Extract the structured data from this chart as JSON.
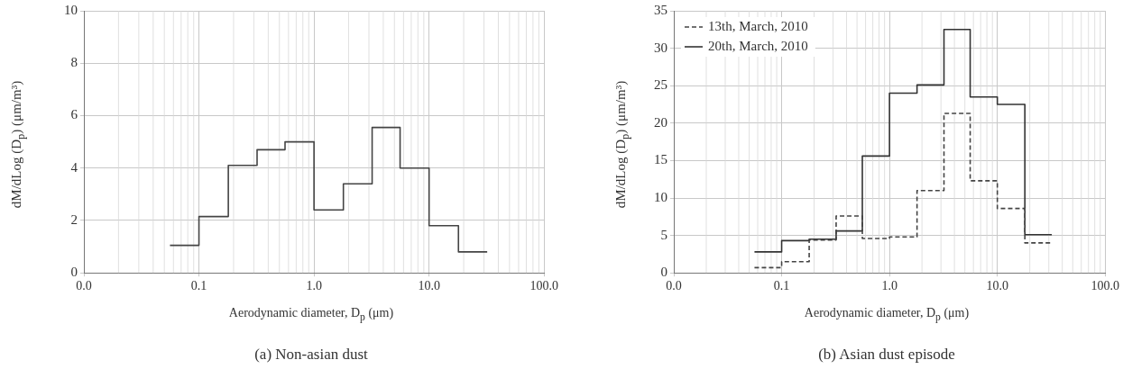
{
  "chart_data": [
    {
      "type": "histogram",
      "title": "(a) Non-asian dust",
      "xlabel": "Aerodynamic diameter, D$_{p}$ (μm)",
      "ylabel": "dM/dLog (D$_{p}$) (μm/m³)",
      "log": "x",
      "grid": true,
      "legend": false,
      "line_style": "solid",
      "color": "#444444",
      "bins": [
        0.056,
        0.1,
        0.18,
        0.32,
        0.56,
        1.0,
        1.8,
        3.2,
        5.6,
        10,
        18,
        32
      ],
      "values": [
        1.05,
        2.15,
        4.1,
        4.7,
        5.0,
        2.4,
        3.4,
        5.55,
        4.0,
        1.8,
        0.8
      ],
      "xlim": [
        0.01,
        100
      ],
      "xticks": [
        {
          "value": 0.01,
          "label": "0.0"
        },
        {
          "value": 0.1,
          "label": "0.1"
        },
        {
          "value": 1,
          "label": "1.0"
        },
        {
          "value": 10,
          "label": "10.0"
        },
        {
          "value": 100,
          "label": "100.0"
        }
      ],
      "ylim": [
        0,
        10
      ],
      "yticks": [
        0,
        2,
        4,
        6,
        8,
        10
      ]
    },
    {
      "type": "histogram",
      "title": "(b) Asian dust episode",
      "xlabel": "Aerodynamic diameter, D$_{p}$ (μm)",
      "ylabel": "dM/dLog (D$_{p}$) (μm/m³)",
      "log": "x",
      "grid": true,
      "legend": "top left",
      "bins": [
        0.056,
        0.1,
        0.18,
        0.32,
        0.56,
        1.0,
        1.8,
        3.2,
        5.6,
        10,
        18,
        32
      ],
      "series": [
        {
          "name": "13th, March, 2010",
          "color": "#444444",
          "line_style": "dashed",
          "values": [
            0.7,
            1.5,
            4.4,
            7.6,
            4.6,
            4.8,
            11.0,
            21.3,
            12.3,
            8.6,
            4.0
          ]
        },
        {
          "name": "20th, March, 2010",
          "color": "#333333",
          "line_style": "solid",
          "values": [
            2.8,
            4.3,
            4.5,
            5.6,
            15.6,
            24.0,
            25.1,
            32.5,
            23.5,
            22.5,
            5.1
          ]
        }
      ],
      "xlim": [
        0.01,
        100
      ],
      "xticks": [
        {
          "value": 0.01,
          "label": "0.0"
        },
        {
          "value": 0.1,
          "label": "0.1"
        },
        {
          "value": 1,
          "label": "1.0"
        },
        {
          "value": 10,
          "label": "10.0"
        },
        {
          "value": 100,
          "label": "100.0"
        }
      ],
      "ylim": [
        0,
        35
      ],
      "yticks": [
        0,
        5,
        10,
        15,
        20,
        25,
        30,
        35
      ]
    }
  ]
}
